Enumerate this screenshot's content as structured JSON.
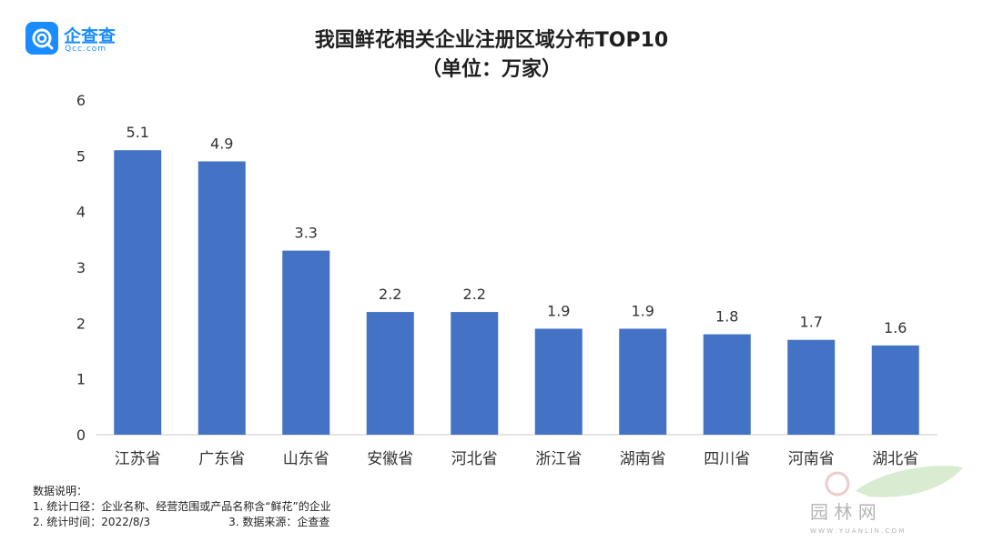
{
  "brand": {
    "name": "企查查",
    "domain": "Qcc.com",
    "color": "#1a8cff"
  },
  "chart_data": {
    "type": "bar",
    "title": "我国鲜花相关企业注册区域分布TOP10",
    "subtitle": "（单位：万家）",
    "categories": [
      "江苏省",
      "广东省",
      "山东省",
      "安徽省",
      "河北省",
      "浙江省",
      "湖南省",
      "四川省",
      "河南省",
      "湖北省"
    ],
    "values": [
      5.1,
      4.9,
      3.3,
      2.2,
      2.2,
      1.9,
      1.9,
      1.8,
      1.7,
      1.6
    ],
    "yticks": [
      "0",
      "1",
      "2",
      "3",
      "4",
      "5",
      "6"
    ],
    "ylim": [
      0,
      6
    ],
    "grid": false,
    "bar_color": "#4472c4"
  },
  "notes": {
    "heading": "数据说明：",
    "line1": "1. 统计口径：企业名称、经营范围或产品名称含“鲜花”的企业",
    "line2a": "2. 统计时间：2022/8/3",
    "line2b": "3. 数据来源：企查查"
  },
  "watermark": {
    "text": "园 林 网",
    "url": "W W W . Y U A N L I N . C O M"
  }
}
